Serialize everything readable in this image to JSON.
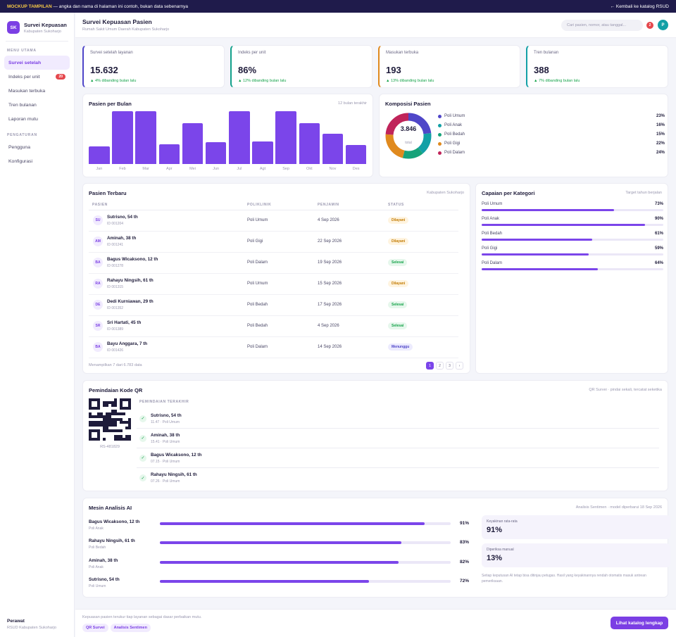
{
  "topbar": {
    "tag": "MOCKUP TAMPILAN",
    "note": "— angka dan nama di halaman ini contoh, bukan data sebenarnya",
    "back": "← Kembali ke katalog RSUD"
  },
  "brand": {
    "logo": "SK",
    "title": "Survei Kepuasan",
    "subtitle": "Kabupaten Sukoharjo"
  },
  "sidebar": {
    "section1": "MENU UTAMA",
    "items": [
      {
        "label": "Survei setelah",
        "active": true
      },
      {
        "label": "Indeks per unit",
        "badge": "20"
      },
      {
        "label": "Masukan terbuka"
      },
      {
        "label": "Tren bulanan"
      },
      {
        "label": "Laporan mutu"
      }
    ],
    "section2": "PENGATURAN",
    "items2": [
      {
        "label": "Pengguna"
      },
      {
        "label": "Konfigurasi"
      }
    ],
    "footer_role": "Perawat",
    "footer_org": "RSUD Kabupaten Sukoharjo"
  },
  "header": {
    "title": "Survei Kepuasan Pasien",
    "subtitle": "Rumah Sakit Umum Daerah Kabupaten Sukoharjo",
    "search_placeholder": "Cari pasien, nomor, atau tanggal...",
    "notif": "2",
    "avatar": "P"
  },
  "kpis": [
    {
      "label": "Survei setelah layanan",
      "value": "15.632",
      "delta": "▲ 4% dibanding bulan lalu",
      "color": "#4f46c8"
    },
    {
      "label": "Indeks per unit",
      "value": "86%",
      "delta": "▲ 12% dibanding bulan lalu",
      "color": "#12a08a"
    },
    {
      "label": "Masukan terbuka",
      "value": "193",
      "delta": "▲ 13% dibanding bulan lalu",
      "color": "#e08a1e"
    },
    {
      "label": "Tren bulanan",
      "value": "388",
      "delta": "▲ 7% dibanding bulan lalu",
      "color": "#12a0a6"
    }
  ],
  "chart_data": {
    "type": "bar",
    "title": "Pasien per Bulan",
    "subtitle": "12 bulan terakhir",
    "categories": [
      "Jan",
      "Feb",
      "Mar",
      "Apr",
      "Mei",
      "Jun",
      "Jul",
      "Agt",
      "Sep",
      "Okt",
      "Nov",
      "Des"
    ],
    "values": [
      33,
      100,
      100,
      38,
      78,
      41,
      100,
      43,
      100,
      78,
      57,
      36
    ],
    "ylim": [
      0,
      100
    ]
  },
  "composition": {
    "title": "Komposisi Pasien",
    "total": "3.846",
    "total_label": "total",
    "items": [
      {
        "label": "Poli Umum",
        "pct": "23%",
        "value": 23,
        "color": "#4f46c8"
      },
      {
        "label": "Poli Anak",
        "pct": "16%",
        "value": 16,
        "color": "#12a0a6"
      },
      {
        "label": "Poli Bedah",
        "pct": "15%",
        "value": 15,
        "color": "#16a37a"
      },
      {
        "label": "Poli Gigi",
        "pct": "22%",
        "value": 22,
        "color": "#e08a1e"
      },
      {
        "label": "Poli Dalam",
        "pct": "24%",
        "value": 24,
        "color": "#c0245a"
      }
    ]
  },
  "patients": {
    "title": "Pasien Terbaru",
    "subtitle": "Kabupaten Sukoharjo",
    "columns": [
      "PASIEN",
      "POLIKLINIK",
      "PENJAMIN",
      "STATUS"
    ],
    "rows": [
      {
        "ini": "SU",
        "name": "Sutrisno, 54 th",
        "id": "ID 001204",
        "poli": "Poli Umum",
        "date": "4 Sep 2026",
        "status": "Dilayani"
      },
      {
        "ini": "AM",
        "name": "Aminah, 38 th",
        "id": "ID 001241",
        "poli": "Poli Gigi",
        "date": "22 Sep 2026",
        "status": "Dilayani"
      },
      {
        "ini": "BA",
        "name": "Bagus Wicaksono, 12 th",
        "id": "ID 001278",
        "poli": "Poli Dalam",
        "date": "19 Sep 2026",
        "status": "Selesai"
      },
      {
        "ini": "RA",
        "name": "Rahayu Ningsih, 61 th",
        "id": "ID 001315",
        "poli": "Poli Umum",
        "date": "15 Sep 2026",
        "status": "Dilayani"
      },
      {
        "ini": "DE",
        "name": "Dedi Kurniawan, 29 th",
        "id": "ID 001352",
        "poli": "Poli Bedah",
        "date": "17 Sep 2026",
        "status": "Selesai"
      },
      {
        "ini": "SR",
        "name": "Sri Hartati, 45 th",
        "id": "ID 001389",
        "poli": "Poli Bedah",
        "date": "4 Sep 2026",
        "status": "Selesai"
      },
      {
        "ini": "BA",
        "name": "Bayu Anggara, 7 th",
        "id": "ID 001426",
        "poli": "Poli Dalam",
        "date": "14 Sep 2026",
        "status": "Menunggu"
      }
    ],
    "showing": "Menampilkan 7 dari 6.783 data",
    "pages": [
      "1",
      "2",
      "3",
      "›"
    ]
  },
  "achievement": {
    "title": "Capaian per Kategori",
    "subtitle": "Target tahun berjalan",
    "items": [
      {
        "label": "Poli Umum",
        "pct": "73%",
        "value": 73
      },
      {
        "label": "Poli Anak",
        "pct": "90%",
        "value": 90
      },
      {
        "label": "Poli Bedah",
        "pct": "61%",
        "value": 61
      },
      {
        "label": "Poli Gigi",
        "pct": "59%",
        "value": 59
      },
      {
        "label": "Poli Dalam",
        "pct": "64%",
        "value": 64
      }
    ]
  },
  "qr": {
    "title": "Pemindaian Kode QR",
    "subtitle": "QR Survei · pindai sekali, tercatat seketika",
    "code": "RS-481829",
    "recent_label": "PEMINDAIAN TERAKHIR",
    "scans": [
      {
        "name": "Sutrisno, 54 th",
        "meta": "11.47 · Poli Umum"
      },
      {
        "name": "Aminah, 38 th",
        "meta": "15.41 · Poli Umum"
      },
      {
        "name": "Bagus Wicaksono, 12 th",
        "meta": "07.15 · Poli Umum"
      },
      {
        "name": "Rahayu Ningsih, 61 th",
        "meta": "07.26 · Poli Umum"
      }
    ]
  },
  "ai": {
    "title": "Mesin Analisis AI",
    "subtitle": "Analisis Sentimen · model diperbarui 18 Sep 2026",
    "rows": [
      {
        "name": "Bagus Wicaksono, 12 th",
        "poli": "Poli Anak",
        "pct": "91%",
        "value": 91
      },
      {
        "name": "Rahayu Ningsih, 61 th",
        "poli": "Poli Bedah",
        "pct": "83%",
        "value": 83
      },
      {
        "name": "Aminah, 38 th",
        "poli": "Poli Anak",
        "pct": "82%",
        "value": 82
      },
      {
        "name": "Sutrisno, 54 th",
        "poli": "Poli Umum",
        "pct": "72%",
        "value": 72
      }
    ],
    "conf_label": "Keyakinan rata-rata",
    "conf_value": "91%",
    "manual_label": "Diperiksa manual",
    "manual_value": "13%",
    "note": "Setiap keputusan AI tetap bisa ditinjau petugas. Hasil yang keyakinannya rendah otomatis masuk antrean pemeriksaan."
  },
  "footer": {
    "text": "Kepuasan pasien terukur tiap layanan sebagai dasar perbaikan mutu.",
    "chips": [
      "QR Survei",
      "Analisis Sentimen"
    ],
    "cta": "Lihat katalog lengkap"
  }
}
